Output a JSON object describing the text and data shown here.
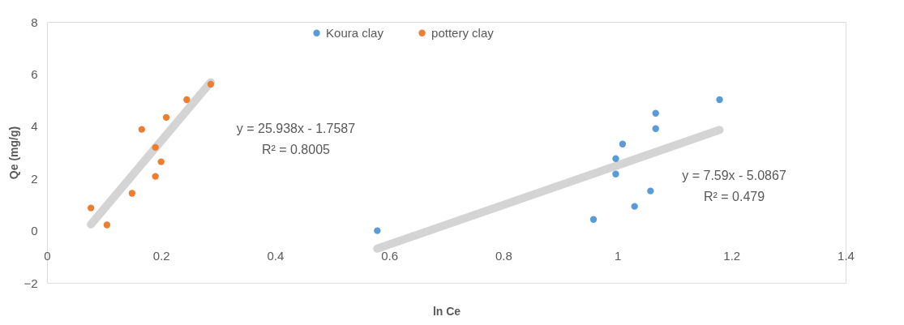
{
  "chart_data": {
    "type": "scatter",
    "xlabel": "ln Ce",
    "ylabel": "Qe (mg/g)",
    "xlim": [
      0,
      1.4
    ],
    "xticks": [
      0,
      0.2,
      0.4,
      0.6,
      0.8,
      1,
      1.2,
      1.4
    ],
    "ylim": [
      -2,
      8
    ],
    "yticks": [
      -2,
      0,
      2,
      4,
      6,
      8
    ],
    "grid": false,
    "legend": "top",
    "marker": "circle",
    "series": [
      {
        "name": "Koura clay",
        "color": "#5b9bd5",
        "x": [
          0.579,
          0.958,
          0.997,
          0.997,
          1.009,
          1.03,
          1.058,
          1.067,
          1.067,
          1.179
        ],
        "values": [
          0.0,
          0.43,
          2.17,
          2.76,
          3.32,
          0.93,
          1.52,
          4.5,
          3.91,
          5.02
        ]
      },
      {
        "name": "pottery clay",
        "color": "#ed7d31",
        "x": [
          0.077,
          0.105,
          0.149,
          0.166,
          0.19,
          0.19,
          0.2,
          0.209,
          0.245,
          0.287
        ],
        "values": [
          0.87,
          0.22,
          1.43,
          3.88,
          2.08,
          3.19,
          2.64,
          4.34,
          5.02,
          5.61
        ]
      },
      {
        "type": "line",
        "marker": "none",
        "color": "#d4d4d4",
        "x": [
          0.077,
          0.287
        ],
        "values": [
          0.24,
          5.69
        ]
      },
      {
        "type": "line",
        "marker": "none",
        "color": "#d4d4d4",
        "x": [
          0.579,
          1.179
        ],
        "values": [
          -0.69,
          3.86
        ]
      }
    ],
    "annotations": [
      "y = 25.938x - 1.7587",
      "R² = 0.8005",
      "y = 7.59x - 5.0867",
      "R² = 0.479"
    ]
  }
}
